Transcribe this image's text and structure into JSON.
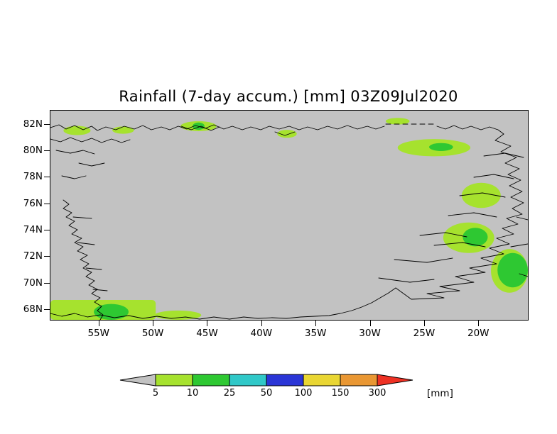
{
  "chart_data": {
    "type": "heatmap",
    "title": "Rainfall (7-day accum.) [mm] 03Z09Jul2020",
    "variable": "7-day accumulated rainfall",
    "units": "mm",
    "valid_time": "03Z09Jul2020",
    "region": "Greenland",
    "lon_range": [
      -59.5,
      -15.5
    ],
    "lat_range": [
      67.25,
      83.05
    ],
    "lat_ticks": [
      "82N",
      "80N",
      "78N",
      "76N",
      "74N",
      "72N",
      "70N",
      "68N"
    ],
    "lon_ticks": [
      "55W",
      "50W",
      "45W",
      "40W",
      "35W",
      "30W",
      "25W",
      "20W"
    ],
    "map_background": "#c2c2c2",
    "grid": false,
    "legend_position": "bottom",
    "colorbar": {
      "unit_label": "[mm]",
      "tick_labels": [
        "5",
        "10",
        "25",
        "50",
        "100",
        "150",
        "300"
      ],
      "segments": [
        {
          "range": "<5",
          "color": "#c2c2c2"
        },
        {
          "range": "5-10",
          "color": "#a6e22e"
        },
        {
          "range": "10-25",
          "color": "#2ec832"
        },
        {
          "range": "25-50",
          "color": "#30c8c8"
        },
        {
          "range": "50-100",
          "color": "#2a35d6"
        },
        {
          "range": "100-150",
          "color": "#e9d633"
        },
        {
          "range": "150-300",
          "color": "#e99733"
        },
        {
          "range": ">300",
          "color": "#ee3124"
        }
      ]
    },
    "rain_patches": [
      {
        "lon": [
          -59.5,
          -49.8
        ],
        "lat": [
          67.25,
          68.75
        ],
        "level": "5-10",
        "shape": "rect"
      },
      {
        "lon": [
          -55.5,
          -52.3
        ],
        "lat": [
          67.25,
          68.45
        ],
        "level": "10-25",
        "shape": "ellipse"
      },
      {
        "lon": [
          -49.9,
          -45.6
        ],
        "lat": [
          67.25,
          67.95
        ],
        "level": "5-10",
        "shape": "ellipse"
      },
      {
        "lon": [
          -58.3,
          -55.8
        ],
        "lat": [
          81.2,
          81.9
        ],
        "level": "5-10",
        "shape": "ellipse"
      },
      {
        "lon": [
          -53.8,
          -51.8
        ],
        "lat": [
          81.3,
          81.85
        ],
        "level": "5-10",
        "shape": "ellipse"
      },
      {
        "lon": [
          -47.5,
          -44.2
        ],
        "lat": [
          81.5,
          82.25
        ],
        "level": "5-10",
        "shape": "ellipse"
      },
      {
        "lon": [
          -46.4,
          -45.3
        ],
        "lat": [
          81.6,
          82.15
        ],
        "level": "10-25",
        "shape": "ellipse"
      },
      {
        "lon": [
          -38.6,
          -36.8
        ],
        "lat": [
          81.0,
          81.6
        ],
        "level": "5-10",
        "shape": "ellipse"
      },
      {
        "lon": [
          -28.6,
          -26.4
        ],
        "lat": [
          82.0,
          82.5
        ],
        "level": "5-10",
        "shape": "ellipse"
      },
      {
        "lon": [
          -27.5,
          -20.8
        ],
        "lat": [
          79.6,
          80.9
        ],
        "level": "5-10",
        "shape": "ellipse"
      },
      {
        "lon": [
          -24.6,
          -22.4
        ],
        "lat": [
          80.0,
          80.6
        ],
        "level": "10-25",
        "shape": "ellipse"
      },
      {
        "lon": [
          -21.6,
          -18.0
        ],
        "lat": [
          75.7,
          77.6
        ],
        "level": "5-10",
        "shape": "ellipse"
      },
      {
        "lon": [
          -23.3,
          -18.6
        ],
        "lat": [
          72.3,
          74.6
        ],
        "level": "5-10",
        "shape": "ellipse"
      },
      {
        "lon": [
          -21.5,
          -19.2
        ],
        "lat": [
          72.8,
          74.2
        ],
        "level": "10-25",
        "shape": "ellipse"
      },
      {
        "lon": [
          -18.9,
          -15.5
        ],
        "lat": [
          69.3,
          72.6
        ],
        "level": "5-10",
        "shape": "ellipse"
      },
      {
        "lon": [
          -18.3,
          -15.5
        ],
        "lat": [
          69.7,
          72.3
        ],
        "level": "10-25",
        "shape": "ellipse"
      }
    ]
  }
}
